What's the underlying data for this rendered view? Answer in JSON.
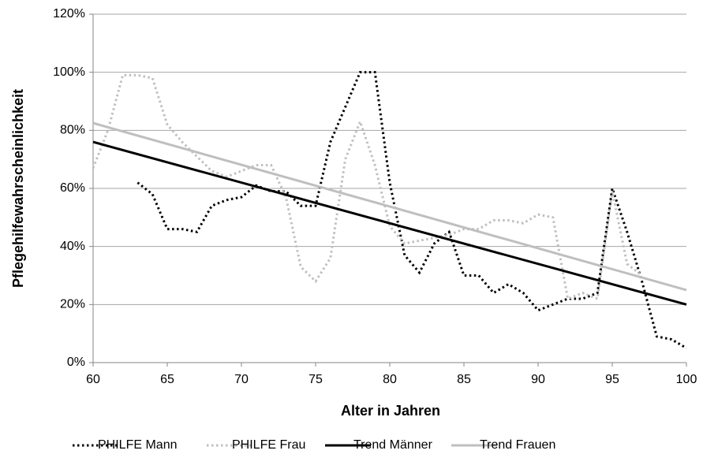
{
  "chart_data": {
    "type": "line",
    "xlabel": "Alter in Jahren",
    "ylabel": "Pflegehilfewahrscheinlichkeit",
    "xlim": [
      60,
      100
    ],
    "xticks": [
      60,
      65,
      70,
      75,
      80,
      85,
      90,
      95,
      100
    ],
    "ylim": [
      0,
      120
    ],
    "yticks": [
      {
        "value": 0,
        "label": "0%"
      },
      {
        "value": 20,
        "label": "20%"
      },
      {
        "value": 40,
        "label": "40%"
      },
      {
        "value": 60,
        "label": "60%"
      },
      {
        "value": 80,
        "label": "80%"
      },
      {
        "value": 100,
        "label": "100%"
      },
      {
        "value": 120,
        "label": "120%"
      }
    ],
    "grid": true,
    "legend": "bottom",
    "series": [
      {
        "name": "PHILFE Mann",
        "color": "#000000",
        "style": "dotted",
        "x": [
          63,
          64,
          65,
          66,
          67,
          68,
          69,
          70,
          71,
          72,
          73,
          74,
          75,
          76,
          77,
          78,
          79,
          80,
          81,
          82,
          83,
          84,
          85,
          86,
          87,
          88,
          89,
          90,
          91,
          92,
          93,
          94,
          95,
          96,
          97,
          98,
          99,
          100
        ],
        "values": [
          62,
          58,
          46,
          46,
          45,
          54,
          56,
          57,
          61,
          59,
          59,
          54,
          54,
          76,
          88,
          100,
          100,
          62,
          37,
          31,
          41,
          45,
          30,
          30,
          24,
          27,
          24,
          18,
          20,
          22,
          22,
          24,
          60,
          45,
          28,
          9,
          8,
          5
        ]
      },
      {
        "name": "PHILFE Frau",
        "color": "#bfbfbf",
        "style": "dotted",
        "x": [
          60,
          61,
          62,
          63,
          64,
          65,
          66,
          67,
          68,
          69,
          70,
          71,
          72,
          73,
          74,
          75,
          76,
          77,
          78,
          79,
          80,
          81,
          82,
          83,
          84,
          85,
          86,
          87,
          88,
          89,
          90,
          91,
          92,
          93,
          94,
          95,
          96,
          97
        ],
        "values": [
          67,
          80,
          99,
          99,
          98,
          82,
          76,
          71,
          66,
          64,
          66,
          68,
          68,
          57,
          33,
          28,
          36,
          70,
          83,
          68,
          47,
          41,
          42,
          43,
          44,
          46,
          46,
          49,
          49,
          48,
          51,
          50,
          22,
          24,
          22,
          59,
          34,
          30
        ]
      },
      {
        "name": "Trend Männer",
        "color": "#000000",
        "style": "solid",
        "x": [
          60,
          100
        ],
        "values": [
          76,
          20
        ]
      },
      {
        "name": "Trend Frauen",
        "color": "#bfbfbf",
        "style": "solid",
        "x": [
          60,
          100
        ],
        "values": [
          82.5,
          25
        ]
      }
    ]
  }
}
